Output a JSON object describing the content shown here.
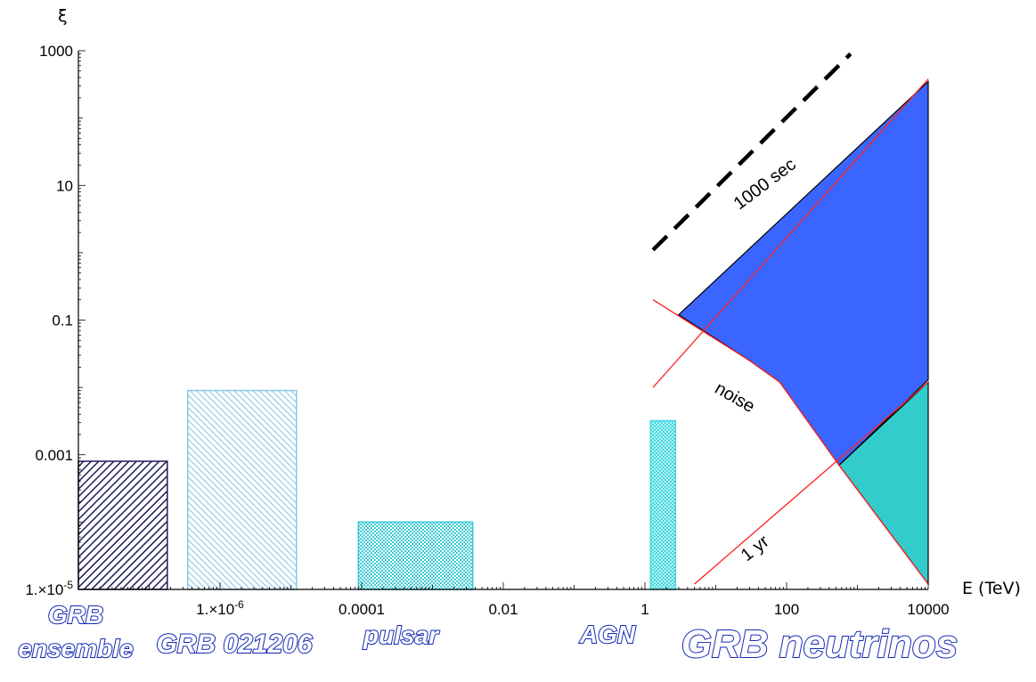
{
  "chart_data": {
    "type": "area",
    "title": "",
    "xlabel": "E (TeV)",
    "ylabel": "ξ",
    "xscale": "log",
    "yscale": "log",
    "xlim": [
      1e-08,
      10000
    ],
    "ylim": [
      1e-05,
      1000
    ],
    "x_ticks": [
      {
        "value": 1e-06,
        "label": "1.×10-6"
      },
      {
        "value": 0.0001,
        "label": "0.0001"
      },
      {
        "value": 0.01,
        "label": "0.01"
      },
      {
        "value": 1,
        "label": "1"
      },
      {
        "value": 100,
        "label": "100"
      },
      {
        "value": 10000,
        "label": "10000"
      }
    ],
    "y_ticks": [
      {
        "value": 1e-05,
        "label": "1.×10-5"
      },
      {
        "value": 0.001,
        "label": "0.001"
      },
      {
        "value": 0.1,
        "label": "0.1"
      },
      {
        "value": 10,
        "label": "10"
      },
      {
        "value": 1000,
        "label": "1000"
      }
    ],
    "grid": false,
    "source_boxes": [
      {
        "name": "GRB ensemble",
        "label_lines": [
          "GRB",
          "ensemble"
        ],
        "xrange": [
          1e-08,
          1.8e-07
        ],
        "yrange": [
          1e-05,
          0.0008
        ],
        "color": "#1e1e5a"
      },
      {
        "name": "GRB 021206",
        "label_lines": [
          "GRB 021206"
        ],
        "xrange": [
          3.5e-07,
          1.2e-05
        ],
        "yrange": [
          1e-05,
          0.009
        ],
        "color": "#8cc8e6"
      },
      {
        "name": "pulsar",
        "label_lines": [
          "pulsar"
        ],
        "xrange": [
          9e-05,
          0.0037
        ],
        "yrange": [
          1e-05,
          0.0001
        ],
        "color": "#30c8d4"
      },
      {
        "name": "AGN",
        "label_lines": [
          "AGN"
        ],
        "xrange": [
          1.2,
          2.7
        ],
        "yrange": [
          1e-05,
          0.0032
        ],
        "color": "#40d8e0"
      }
    ],
    "region_labels": [
      {
        "label": "GRB neutrinos"
      }
    ],
    "regions": [
      {
        "color": "#3a66ff",
        "points": [
          [
            3,
            0.12
          ],
          [
            30,
            0.025
          ],
          [
            80,
            0.012
          ],
          [
            550,
            0.0007
          ],
          [
            10000,
            0.013
          ],
          [
            10000,
            350
          ]
        ]
      },
      {
        "color": "#33cccc",
        "points": [
          [
            550,
            0.0007
          ],
          [
            10000,
            1.2e-05
          ],
          [
            10000,
            0.012
          ]
        ]
      }
    ],
    "lines": [
      {
        "label": "1000 sec",
        "style": "red",
        "points": [
          [
            1.3,
            0.01
          ],
          [
            10000,
            380
          ]
        ]
      },
      {
        "label": "noise",
        "style": "red",
        "points": [
          [
            1.3,
            0.2
          ],
          [
            30,
            0.025
          ],
          [
            80,
            0.012
          ],
          [
            550,
            0.0007
          ],
          [
            10000,
            1.2e-05
          ]
        ]
      },
      {
        "label": "1 yr",
        "style": "red",
        "points": [
          [
            5,
            1.2e-05
          ],
          [
            10000,
            0.012
          ]
        ]
      },
      {
        "label": "",
        "style": "dashed",
        "points": [
          [
            1.3,
            1.1
          ],
          [
            800,
            900
          ]
        ]
      }
    ],
    "annotations": [
      {
        "text": "1000 sec",
        "x": 55,
        "y": 9,
        "angle_deg": -37
      },
      {
        "text": "noise",
        "x": 17,
        "y": 0.006,
        "angle_deg": 30
      },
      {
        "text": "1 yr",
        "x": 40,
        "y": 3.5e-05,
        "angle_deg": -38
      }
    ]
  }
}
